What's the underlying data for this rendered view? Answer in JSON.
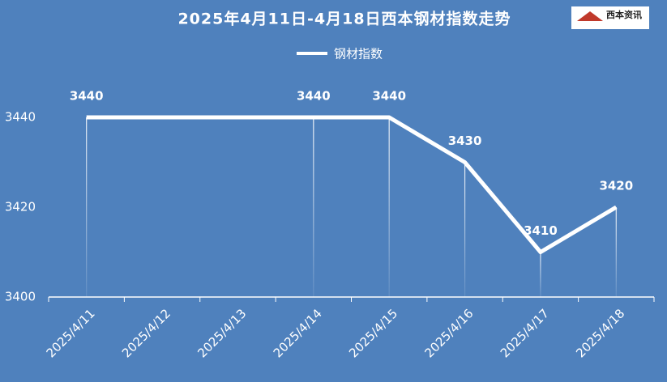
{
  "chart_data": {
    "type": "line",
    "title": "2025年4月11日-4月18日西本钢材指数走势",
    "logo": "西本资讯",
    "categories": [
      "2025/4/11",
      "2025/4/12",
      "2025/4/13",
      "2025/4/14",
      "2025/4/15",
      "2025/4/16",
      "2025/4/17",
      "2025/4/18"
    ],
    "series": [
      {
        "name": "钢材指数",
        "color": "#ffffff",
        "values": [
          3440,
          null,
          null,
          3440,
          3440,
          3430,
          3410,
          3420
        ]
      }
    ],
    "span_gaps": true,
    "drop_lines": true,
    "data_labels": true,
    "ylim": [
      3400,
      3450
    ],
    "yticks": [
      3400,
      3420,
      3440
    ]
  }
}
